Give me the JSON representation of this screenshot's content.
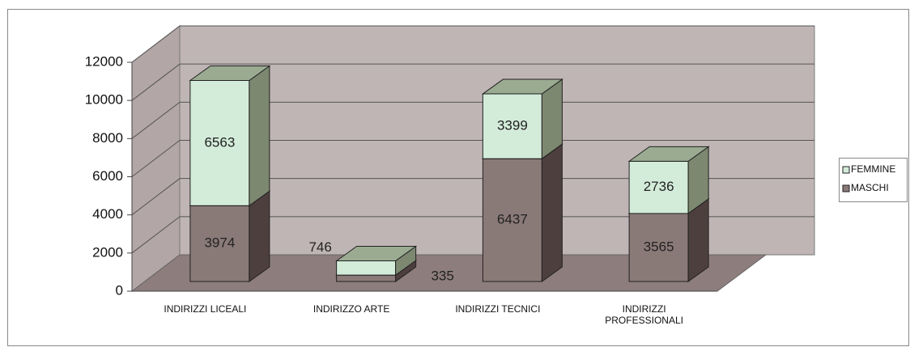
{
  "chart_data": {
    "type": "bar3d-stacked",
    "categories": [
      "INDIRIZZI LICEALI",
      "INDIRIZZO ARTE",
      "INDIRIZZI TECNICI",
      "INDIRIZZI PROFESSIONALI"
    ],
    "series": [
      {
        "name": "MASCHI",
        "color": "#8a7a77",
        "values": [
          3974,
          335,
          6437,
          3565
        ]
      },
      {
        "name": "FEMMINE",
        "color": "#d3ecd9",
        "values": [
          6563,
          746,
          3399,
          2736
        ]
      }
    ],
    "ylim": [
      0,
      12000
    ],
    "yticks": [
      0,
      2000,
      4000,
      6000,
      8000,
      10000,
      12000
    ],
    "grid": true,
    "legend": "right"
  }
}
